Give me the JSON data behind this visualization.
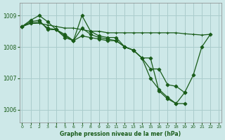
{
  "title": "Graphe pression niveau de la mer (hPa)",
  "background_color": "#cde8e8",
  "grid_color": "#aacccc",
  "line_color": "#1a5c1a",
  "ylim": [
    1005.6,
    1009.4
  ],
  "xlim": [
    -0.3,
    23.3
  ],
  "yticks": [
    1006,
    1007,
    1008,
    1009
  ],
  "xticks": [
    0,
    1,
    2,
    3,
    4,
    5,
    6,
    7,
    8,
    9,
    10,
    11,
    12,
    13,
    14,
    15,
    16,
    17,
    18,
    19,
    20,
    21,
    22,
    23
  ],
  "series": [
    {
      "x": [
        0,
        1,
        2,
        3,
        4,
        5,
        6,
        7,
        8,
        9,
        10,
        11,
        12,
        13,
        14,
        15,
        16,
        17,
        18,
        19,
        20,
        21,
        22
      ],
      "y": [
        1008.65,
        1008.75,
        1008.75,
        1008.7,
        1008.65,
        1008.6,
        1008.6,
        1008.55,
        1008.5,
        1008.5,
        1008.45,
        1008.45,
        1008.45,
        1008.45,
        1008.45,
        1008.45,
        1008.45,
        1008.45,
        1008.45,
        1008.42,
        1008.4,
        1008.38,
        1008.4
      ],
      "marker": "+",
      "markersize": 3.5,
      "linewidth": 0.9
    },
    {
      "x": [
        0,
        1,
        2,
        3,
        4,
        5,
        6,
        7,
        8,
        9,
        10,
        11,
        12,
        13,
        14,
        15,
        16,
        17,
        18,
        19
      ],
      "y": [
        1008.65,
        1008.85,
        1009.0,
        1008.8,
        1008.55,
        1008.4,
        1008.2,
        1008.35,
        1008.3,
        1008.25,
        1008.2,
        1008.2,
        1008.0,
        1007.9,
        1007.65,
        1007.0,
        1006.65,
        1006.4,
        1006.2,
        1006.2
      ],
      "marker": "D",
      "markersize": 2.5,
      "linewidth": 0.9
    },
    {
      "x": [
        0,
        1,
        2,
        3,
        4,
        5,
        6,
        7,
        8,
        9,
        10,
        11,
        12,
        13,
        14,
        15,
        16,
        17,
        18,
        19,
        20,
        21,
        22
      ],
      "y": [
        1008.65,
        1008.75,
        1008.8,
        1008.6,
        1008.55,
        1008.3,
        1008.2,
        1009.0,
        1008.5,
        1008.35,
        1008.3,
        1008.3,
        1008.0,
        1007.9,
        1007.65,
        1007.65,
        1006.6,
        1006.35,
        1006.2,
        1006.55,
        1007.1,
        1008.0,
        1008.4
      ],
      "marker": "D",
      "markersize": 2.5,
      "linewidth": 0.9
    },
    {
      "x": [
        0,
        1,
        2,
        3,
        4,
        5,
        6,
        7,
        8,
        9,
        10,
        11,
        12,
        13,
        14,
        15,
        16,
        17,
        18,
        19
      ],
      "y": [
        1008.65,
        1008.8,
        1008.85,
        1008.55,
        1008.55,
        1008.35,
        1008.2,
        1008.6,
        1008.4,
        1008.3,
        1008.25,
        1008.2,
        1008.0,
        1007.9,
        1007.65,
        1007.3,
        1007.3,
        1006.8,
        1006.75,
        1006.55
      ],
      "marker": "D",
      "markersize": 2.5,
      "linewidth": 0.9
    }
  ]
}
